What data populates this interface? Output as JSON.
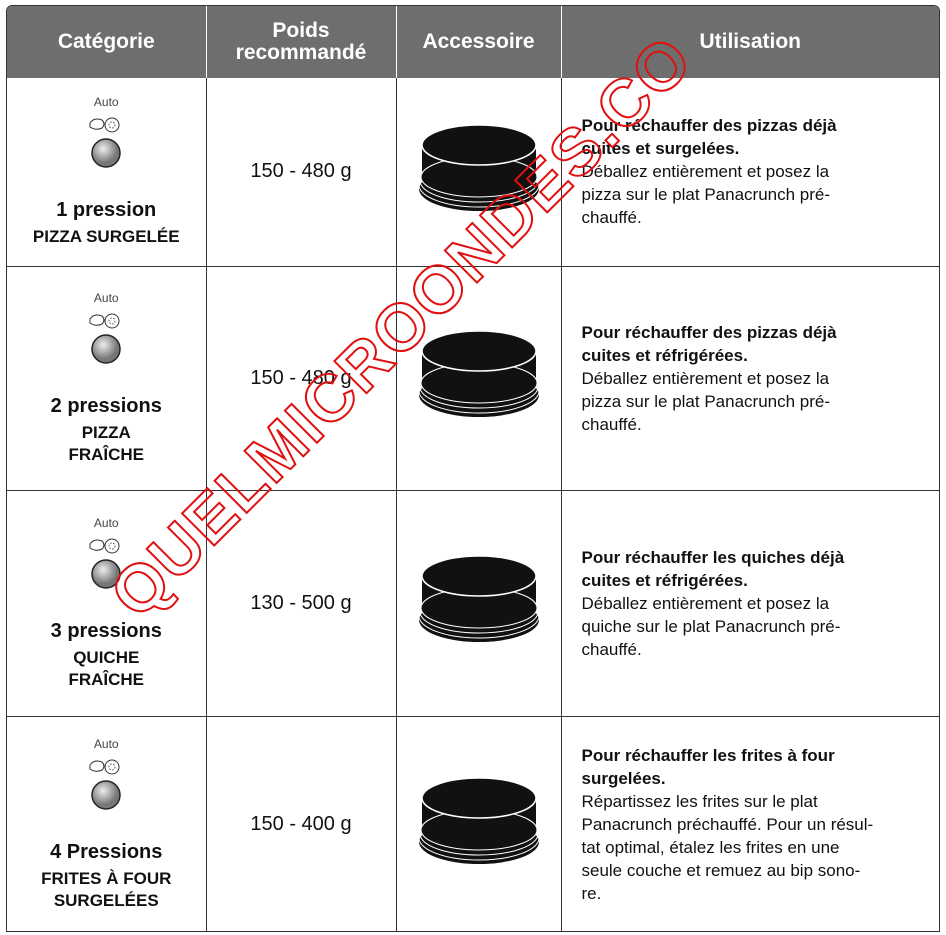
{
  "header": {
    "columns": [
      [
        "Catégorie"
      ],
      [
        "Poids",
        "recommandé"
      ],
      [
        "Accessoire"
      ],
      [
        "Utilisation"
      ]
    ]
  },
  "rows": [
    {
      "auto": "Auto",
      "presses": "1 pression",
      "name": [
        "PIZZA SURGELÉE"
      ],
      "weight": "150 - 480 g",
      "bold": [
        "Pour réchauffer des pizzas déjà",
        "cuites et surgelées."
      ],
      "text": [
        "Déballez entièrement et posez la",
        "pizza sur le plat Panacrunch pré-",
        "chauffé."
      ]
    },
    {
      "auto": "Auto",
      "presses": "2 pressions",
      "name": [
        "PIZZA",
        "FRAÎCHE"
      ],
      "weight": "150 - 480 g",
      "bold": [
        "Pour réchauffer des pizzas déjà",
        "cuites et réfrigérées."
      ],
      "text": [
        "Déballez entièrement et posez la",
        "pizza sur le plat Panacrunch pré-",
        "chauffé."
      ]
    },
    {
      "auto": "Auto",
      "presses": "3 pressions",
      "name": [
        "QUICHE",
        "FRAÎCHE"
      ],
      "weight": "130 - 500 g",
      "bold": [
        "Pour réchauffer les quiches déjà",
        "cuites et réfrigérées."
      ],
      "text": [
        "Déballez entièrement et posez la",
        "quiche sur le plat Panacrunch pré-",
        "chauffé."
      ]
    },
    {
      "auto": "Auto",
      "presses": "4 Pressions",
      "name": [
        "FRITES À FOUR",
        "SURGELÉES"
      ],
      "weight": "150 - 400 g",
      "bold": [
        "Pour réchauffer les frites à four",
        "surgelées."
      ],
      "text": [
        "Répartissez les frites sur le plat",
        "Panacrunch préchauffé. Pour un résul-",
        "tat optimal, étalez les frites en une",
        "seule couche et remuez au bip sono-",
        "re."
      ]
    }
  ],
  "watermark": "QUELMICROONDES.CO"
}
